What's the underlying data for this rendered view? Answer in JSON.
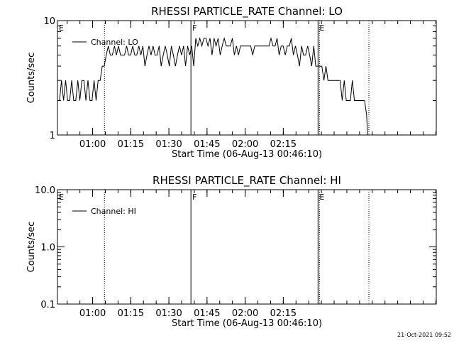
{
  "footer": {
    "timestamp": "21-Oct-2021 09:52"
  },
  "colors": {
    "background": "#ffffff",
    "ink": "#000000"
  },
  "chart_data": [
    {
      "type": "line",
      "title": "RHESSI PARTICLE_RATE Channel: LO",
      "xlabel": "Start Time (06-Aug-13 00:46:10)",
      "ylabel": "Counts/sec",
      "y_scale": "log",
      "ylim": [
        1,
        10
      ],
      "y_ticks": [
        {
          "value": 1,
          "label": "1"
        },
        {
          "value": 10,
          "label": "10"
        }
      ],
      "xlim_minutes": [
        0,
        149
      ],
      "x_ticks": [
        {
          "minute": 13.83,
          "label": "01:00"
        },
        {
          "minute": 28.83,
          "label": "01:15"
        },
        {
          "minute": 43.83,
          "label": "01:30"
        },
        {
          "minute": 58.83,
          "label": "01:45"
        },
        {
          "minute": 73.83,
          "label": "02:00"
        },
        {
          "minute": 88.83,
          "label": "02:15"
        }
      ],
      "legend": {
        "placement": "top-left",
        "label": "Channel: LO"
      },
      "markers": [
        {
          "label": "E",
          "minute": 0,
          "style": "none"
        },
        {
          "label": "",
          "minute": 18.5,
          "style": "dotted"
        },
        {
          "label": "F",
          "minute": 52.5,
          "style": "solid"
        },
        {
          "label": "E",
          "minute": 102.5,
          "style": "solid+dotted"
        },
        {
          "label": "",
          "minute": 122.5,
          "style": "dotted"
        }
      ],
      "series": [
        {
          "name": "Channel: LO",
          "segments": [
            {
              "x": [
                0,
                0.8,
                1.6,
                2.4,
                3.2,
                4.0,
                4.8,
                5.6,
                6.4,
                7.2,
                8.0,
                8.8,
                9.6,
                10.4,
                11.2,
                12.0,
                12.8,
                13.6,
                14.4,
                15.2,
                16.0,
                16.8,
                17.6,
                18.4,
                19.2,
                20.0,
                20.8,
                21.6,
                22.4,
                23.2,
                24.0,
                24.8,
                25.6,
                26.4,
                27.2,
                28.0,
                28.8,
                29.6,
                30.4,
                31.2,
                32.0,
                32.8,
                33.6,
                34.4,
                35.2,
                36.0,
                36.8,
                37.6,
                38.4,
                39.2,
                40.0,
                40.8,
                41.6,
                42.4,
                43.2,
                44.0,
                44.8,
                45.6,
                46.4,
                47.2,
                48.0,
                48.8,
                49.6,
                50.4,
                51.2,
                52.0,
                52.8,
                53.6,
                54.4,
                55.2,
                56.0,
                56.8,
                57.6,
                58.4,
                59.2,
                60.0,
                60.8,
                61.6,
                62.4,
                63.2,
                64.0,
                64.8,
                65.6,
                66.4,
                67.2,
                68.0,
                68.8,
                69.6,
                70.4,
                71.2,
                72.0,
                72.8,
                73.6,
                74.4,
                75.2,
                76.0,
                76.8,
                77.6,
                78.4,
                79.2,
                80.0,
                80.8,
                81.6,
                82.4,
                83.2,
                84.0,
                84.8,
                85.6,
                86.4,
                87.2,
                88.0,
                88.8,
                89.6,
                90.4,
                91.2,
                92.0,
                92.8,
                93.6,
                94.4,
                95.2,
                96.0,
                96.8,
                97.6,
                98.4,
                99.2,
                100.0,
                100.8,
                101.6,
                102.4,
                103.2,
                104.0,
                104.8,
                105.6,
                106.4,
                107.2,
                108.0,
                108.8,
                109.6,
                110.4,
                111.2,
                112.0,
                112.8,
                113.6,
                114.4,
                115.2,
                116.0,
                116.8,
                117.6,
                118.4,
                119.2,
                120.0,
                120.8
              ],
              "y": [
                2,
                2,
                3,
                2,
                3,
                2,
                2,
                3,
                2,
                2,
                3,
                2,
                3,
                3,
                2,
                3,
                2,
                2,
                3,
                2,
                3,
                3,
                4,
                4,
                5,
                6,
                5,
                5,
                6,
                5,
                6,
                5,
                5,
                5,
                6,
                5,
                5,
                6,
                5,
                5,
                6,
                5,
                6,
                4,
                5,
                6,
                5,
                6,
                5,
                5,
                6,
                4,
                5,
                6,
                5,
                4,
                6,
                5,
                4,
                5,
                6,
                5,
                6,
                4,
                6,
                5,
                6,
                4,
                7,
                6,
                7,
                6,
                7,
                7,
                6,
                7,
                5,
                7,
                6,
                7,
                5,
                6,
                7,
                6,
                6,
                6,
                7,
                5,
                6,
                5,
                6,
                6,
                6,
                6,
                6,
                6,
                5,
                6,
                6,
                6,
                6,
                6,
                6,
                6,
                6,
                7,
                6,
                6,
                7,
                5,
                6,
                6,
                5,
                6,
                6,
                7,
                5,
                6,
                5,
                4,
                6,
                5,
                5,
                6,
                5,
                4,
                6,
                4,
                4,
                4,
                4,
                3,
                4,
                3,
                3,
                3,
                3,
                3,
                3,
                3,
                2,
                3,
                2,
                2,
                2,
                3,
                2,
                2,
                2,
                2,
                2,
                2
              ]
            },
            {
              "x": [
                120.8,
                121.6,
                122.0
              ],
              "y": [
                2,
                1.5,
                1
              ]
            }
          ]
        }
      ]
    },
    {
      "type": "line",
      "title": "RHESSI PARTICLE_RATE Channel: HI",
      "xlabel": "Start Time (06-Aug-13 00:46:10)",
      "ylabel": "Counts/sec",
      "y_scale": "log",
      "ylim": [
        0.1,
        10
      ],
      "y_ticks": [
        {
          "value": 0.1,
          "label": "0.1"
        },
        {
          "value": 1,
          "label": "1.0"
        },
        {
          "value": 10,
          "label": "10.0"
        }
      ],
      "xlim_minutes": [
        0,
        149
      ],
      "x_ticks": [
        {
          "minute": 13.83,
          "label": "01:00"
        },
        {
          "minute": 28.83,
          "label": "01:15"
        },
        {
          "minute": 43.83,
          "label": "01:30"
        },
        {
          "minute": 58.83,
          "label": "01:45"
        },
        {
          "minute": 73.83,
          "label": "02:00"
        },
        {
          "minute": 88.83,
          "label": "02:15"
        }
      ],
      "legend": {
        "placement": "top-left",
        "label": "Channel: HI"
      },
      "markers": [
        {
          "label": "E",
          "minute": 0,
          "style": "none"
        },
        {
          "label": "",
          "minute": 18.5,
          "style": "dotted"
        },
        {
          "label": "F",
          "minute": 52.5,
          "style": "solid"
        },
        {
          "label": "E",
          "minute": 102.5,
          "style": "solid+dotted"
        },
        {
          "label": "",
          "minute": 122.5,
          "style": "dotted"
        }
      ],
      "series": [
        {
          "name": "Channel: HI",
          "segments": []
        }
      ]
    }
  ]
}
